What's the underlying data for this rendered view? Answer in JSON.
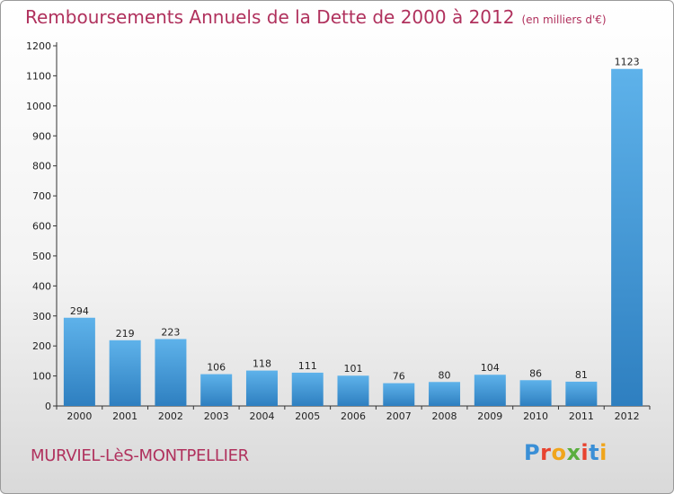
{
  "header": {
    "title": "Remboursements Annuels de la Dette de 2000 à 2012",
    "unit": "(en milliers d'€)"
  },
  "footer": {
    "commune": "MURVIEL-LèS-MONTPELLIER",
    "logo_text": "Proxiti",
    "logo_colors": [
      "#3a8fd6",
      "#e8432f",
      "#f0a51c",
      "#5aae3e",
      "#e8432f",
      "#3a8fd6",
      "#f0a51c"
    ]
  },
  "chart_data": {
    "type": "bar",
    "title": "Remboursements Annuels de la Dette de 2000 à 2012",
    "categories": [
      "2000",
      "2001",
      "2002",
      "2003",
      "2004",
      "2005",
      "2006",
      "2007",
      "2008",
      "2009",
      "2010",
      "2011",
      "2012"
    ],
    "values": [
      294,
      219,
      223,
      106,
      118,
      111,
      101,
      76,
      80,
      104,
      86,
      81,
      1123
    ],
    "ylim": [
      0,
      1200
    ],
    "yticks": [
      0,
      100,
      200,
      300,
      400,
      500,
      600,
      700,
      800,
      900,
      1000,
      1100,
      1200
    ],
    "grid": false,
    "bar_color": "#4a9fdc",
    "title_color": "#b0315d"
  }
}
